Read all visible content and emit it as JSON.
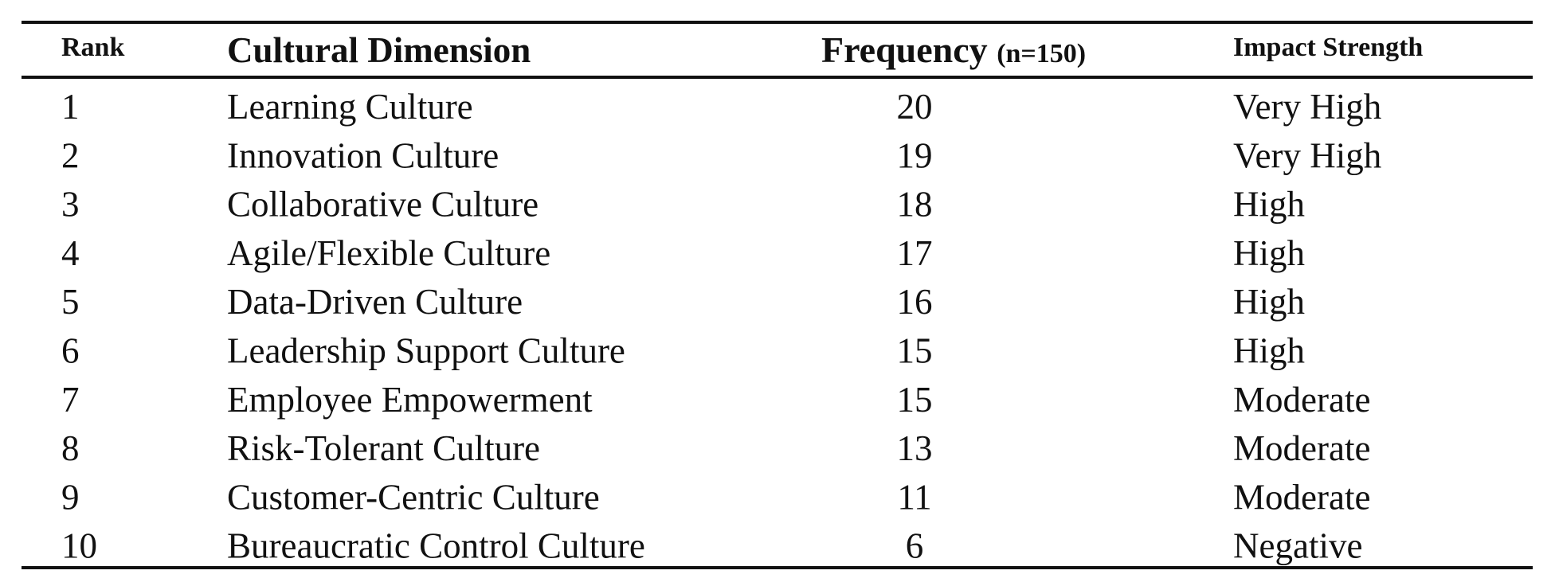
{
  "table": {
    "header": {
      "rank": "Rank",
      "dimension": "Cultural Dimension",
      "frequency": "Frequency",
      "frequency_note": "(n=150)",
      "impact": "Impact Strength"
    },
    "rows": [
      [
        1,
        "Learning Culture",
        20,
        "Very High"
      ],
      [
        2,
        "Innovation Culture",
        19,
        "Very High"
      ],
      [
        3,
        "Collaborative Culture",
        18,
        "High"
      ],
      [
        4,
        "Agile/Flexible Culture",
        17,
        "High"
      ],
      [
        5,
        "Data-Driven Culture",
        16,
        "High"
      ],
      [
        6,
        "Leadership Support Culture",
        15,
        "High"
      ],
      [
        7,
        "Employee Empowerment",
        15,
        "Moderate"
      ],
      [
        8,
        "Risk-Tolerant Culture",
        13,
        "Moderate"
      ],
      [
        9,
        "Customer-Centric Culture",
        11,
        "Moderate"
      ],
      [
        10,
        "Bureaucratic Control Culture",
        6,
        "Negative"
      ]
    ]
  }
}
